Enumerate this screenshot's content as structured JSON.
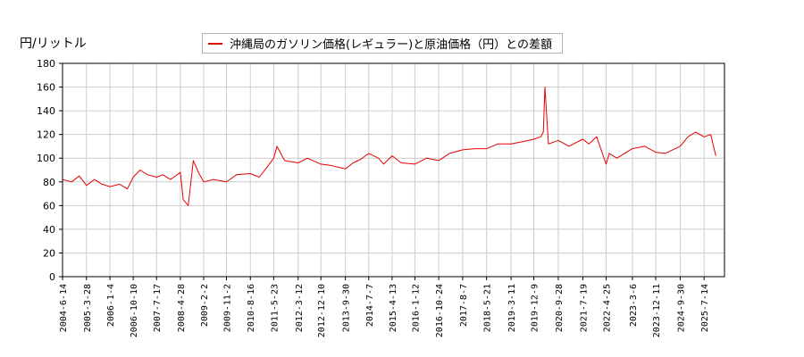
{
  "chart_data": {
    "type": "line",
    "ylabel": "円/リットル",
    "ylim": [
      0,
      180
    ],
    "yticks": [
      0,
      20,
      40,
      60,
      80,
      100,
      120,
      140,
      160,
      180
    ],
    "xticks": [
      "2004-6-14",
      "2005-3-28",
      "2006-1-4",
      "2006-10-10",
      "2007-7-17",
      "2008-4-28",
      "2009-2-2",
      "2009-11-2",
      "2010-8-16",
      "2011-5-23",
      "2012-3-12",
      "2012-12-10",
      "2013-9-30",
      "2014-7-7",
      "2015-4-13",
      "2016-1-12",
      "2016-10-24",
      "2017-8-7",
      "2018-5-21",
      "2019-3-11",
      "2019-12-9",
      "2020-9-28",
      "2021-7-19",
      "2022-4-25",
      "2023-3-6",
      "2023-12-11",
      "2024-9-30",
      "2025-7-14"
    ],
    "grid": true,
    "legend_position": "top-center",
    "series": [
      {
        "name": "沖縄局のガソリン価格(レギュラー)と原油価格（円）との差額",
        "color": "#e60000",
        "x": [
          "2004-6-14",
          "2004-10-1",
          "2005-1-1",
          "2005-3-28",
          "2005-7-1",
          "2005-10-1",
          "2006-1-4",
          "2006-5-1",
          "2006-8-1",
          "2006-10-10",
          "2007-1-1",
          "2007-4-1",
          "2007-7-17",
          "2007-10-1",
          "2008-1-1",
          "2008-4-28",
          "2008-6-1",
          "2008-8-1",
          "2008-10-1",
          "2008-12-1",
          "2009-2-2",
          "2009-6-1",
          "2009-11-2",
          "2010-3-1",
          "2010-8-16",
          "2010-12-1",
          "2011-3-1",
          "2011-5-23",
          "2011-7-1",
          "2011-10-1",
          "2012-3-12",
          "2012-7-1",
          "2012-12-10",
          "2013-4-1",
          "2013-9-30",
          "2014-1-1",
          "2014-4-1",
          "2014-7-7",
          "2014-11-1",
          "2015-1-1",
          "2015-4-13",
          "2015-8-1",
          "2016-1-12",
          "2016-6-1",
          "2016-10-24",
          "2017-3-1",
          "2017-8-7",
          "2018-1-1",
          "2018-5-21",
          "2018-10-1",
          "2019-3-11",
          "2019-8-1",
          "2019-12-9",
          "2020-3-1",
          "2020-4-1",
          "2020-4-20",
          "2020-6-1",
          "2020-9-28",
          "2021-2-1",
          "2021-7-19",
          "2021-10-1",
          "2022-1-1",
          "2022-4-25",
          "2022-6-1",
          "2022-9-1",
          "2023-3-6",
          "2023-8-1",
          "2023-12-11",
          "2024-4-1",
          "2024-9-30",
          "2025-1-1",
          "2025-4-1",
          "2025-7-14",
          "2025-10-1",
          "2025-12-1"
        ],
        "values": [
          82,
          80,
          85,
          77,
          82,
          78,
          76,
          78,
          74,
          84,
          90,
          86,
          84,
          86,
          82,
          88,
          65,
          60,
          98,
          88,
          80,
          82,
          80,
          86,
          87,
          84,
          92,
          100,
          110,
          98,
          96,
          100,
          95,
          94,
          91,
          96,
          99,
          104,
          100,
          95,
          102,
          96,
          95,
          100,
          98,
          104,
          107,
          108,
          108,
          112,
          112,
          114,
          116,
          118,
          122,
          160,
          112,
          115,
          110,
          116,
          112,
          118,
          95,
          104,
          100,
          108,
          110,
          105,
          104,
          110,
          118,
          122,
          118,
          120,
          102
        ]
      }
    ]
  }
}
